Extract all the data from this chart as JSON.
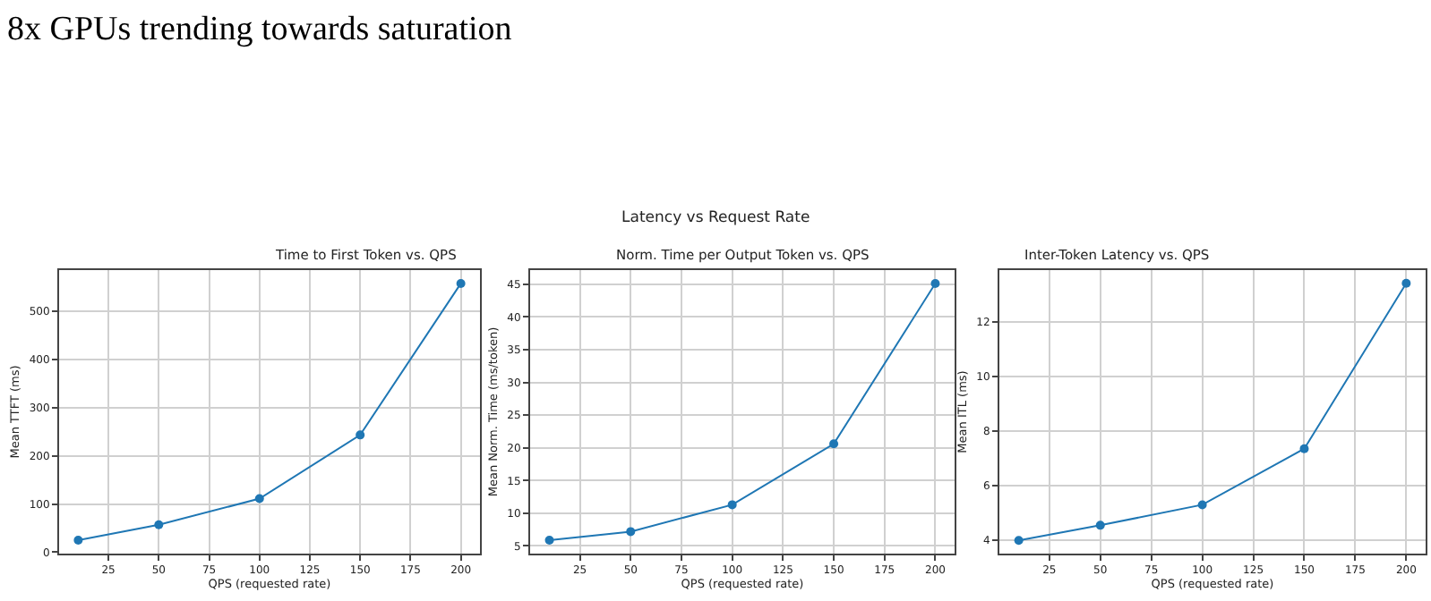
{
  "chart_data": [
    {
      "type": "line",
      "title": "Time to First Token vs. QPS",
      "xlabel": "QPS (requested rate)",
      "ylabel": "Mean TTFT (ms)",
      "annotations": [
        "8x GPUs trending towards saturation",
        "Latency vs Request Rate"
      ],
      "x": [
        10,
        50,
        100,
        150,
        200
      ],
      "series": [
        {
          "color": "#1f77b4",
          "values": [
            25,
            57,
            111,
            243,
            557
          ]
        }
      ],
      "xlim": [
        0.5,
        209.5
      ],
      "xticks": [
        25,
        50,
        75,
        100,
        125,
        150,
        175,
        200
      ],
      "ylim": [
        -2,
        584
      ],
      "yticks": [
        0,
        100,
        200,
        300,
        400,
        500
      ],
      "grid": true,
      "marker": "circle",
      "line_style": "solid"
    },
    {
      "type": "line",
      "title": "Norm. Time per Output Token vs. QPS",
      "xlabel": "QPS (requested rate)",
      "ylabel": "Mean Norm. Time (ms/token)",
      "x": [
        10,
        50,
        100,
        150,
        200
      ],
      "series": [
        {
          "color": "#1f77b4",
          "values": [
            5.9,
            7.2,
            11.3,
            20.6,
            45.1
          ]
        }
      ],
      "xlim": [
        0.5,
        209.5
      ],
      "xticks": [
        25,
        50,
        75,
        100,
        125,
        150,
        175,
        200
      ],
      "ylim": [
        3.9,
        47.1
      ],
      "yticks": [
        5,
        10,
        15,
        20,
        25,
        30,
        35,
        40,
        45
      ],
      "grid": true,
      "marker": "circle",
      "line_style": "solid"
    },
    {
      "type": "line",
      "title": "Inter-Token Latency vs. QPS",
      "xlabel": "QPS (requested rate)",
      "ylabel": "Mean ITL (ms)",
      "x": [
        10,
        50,
        100,
        150,
        200
      ],
      "series": [
        {
          "color": "#1f77b4",
          "values": [
            4.0,
            4.55,
            5.3,
            7.35,
            13.4
          ]
        }
      ],
      "xlim": [
        0.5,
        209.5
      ],
      "xticks": [
        25,
        50,
        75,
        100,
        125,
        150,
        175,
        200
      ],
      "ylim": [
        3.53,
        13.87
      ],
      "yticks": [
        4,
        6,
        8,
        10,
        12
      ],
      "grid": true,
      "marker": "circle",
      "line_style": "solid"
    }
  ]
}
